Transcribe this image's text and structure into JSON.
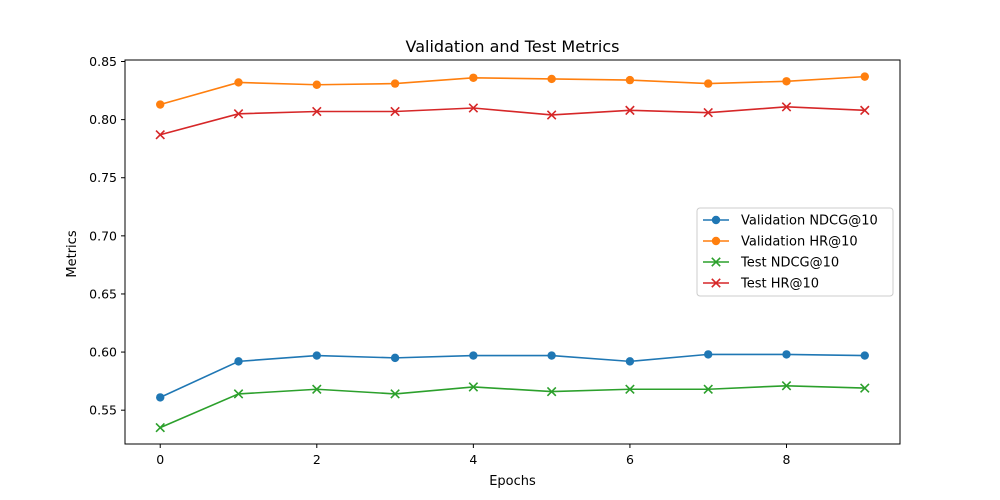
{
  "chart_data": {
    "type": "line",
    "title": "Validation and Test Metrics",
    "xlabel": "Epochs",
    "ylabel": "Metrics",
    "xlim": [
      -0.45,
      9.45
    ],
    "ylim": [
      0.5209,
      0.8513
    ],
    "xticks": [
      0,
      2,
      4,
      6,
      8
    ],
    "xtick_labels": [
      "0",
      "2",
      "4",
      "6",
      "8"
    ],
    "yticks": [
      0.55,
      0.6,
      0.65,
      0.7,
      0.75,
      0.8,
      0.85
    ],
    "ytick_labels": [
      "0.55",
      "0.60",
      "0.65",
      "0.70",
      "0.75",
      "0.80",
      "0.85"
    ],
    "grid": false,
    "legend_position": "center-right",
    "x": [
      0,
      1,
      2,
      3,
      4,
      5,
      6,
      7,
      8,
      9
    ],
    "series": [
      {
        "name": "Validation NDCG@10",
        "color": "#1f77b4",
        "marker": "circle",
        "values": [
          0.561,
          0.592,
          0.597,
          0.595,
          0.597,
          0.597,
          0.592,
          0.598,
          0.598,
          0.597
        ]
      },
      {
        "name": "Validation HR@10",
        "color": "#ff7f0e",
        "marker": "circle",
        "values": [
          0.813,
          0.832,
          0.83,
          0.831,
          0.836,
          0.835,
          0.834,
          0.831,
          0.833,
          0.837
        ]
      },
      {
        "name": "Test NDCG@10",
        "color": "#2ca02c",
        "marker": "x",
        "values": [
          0.535,
          0.564,
          0.568,
          0.564,
          0.57,
          0.566,
          0.568,
          0.568,
          0.571,
          0.569
        ]
      },
      {
        "name": "Test HR@10",
        "color": "#d62728",
        "marker": "x",
        "values": [
          0.787,
          0.805,
          0.807,
          0.807,
          0.81,
          0.804,
          0.808,
          0.806,
          0.811,
          0.808
        ]
      }
    ]
  }
}
